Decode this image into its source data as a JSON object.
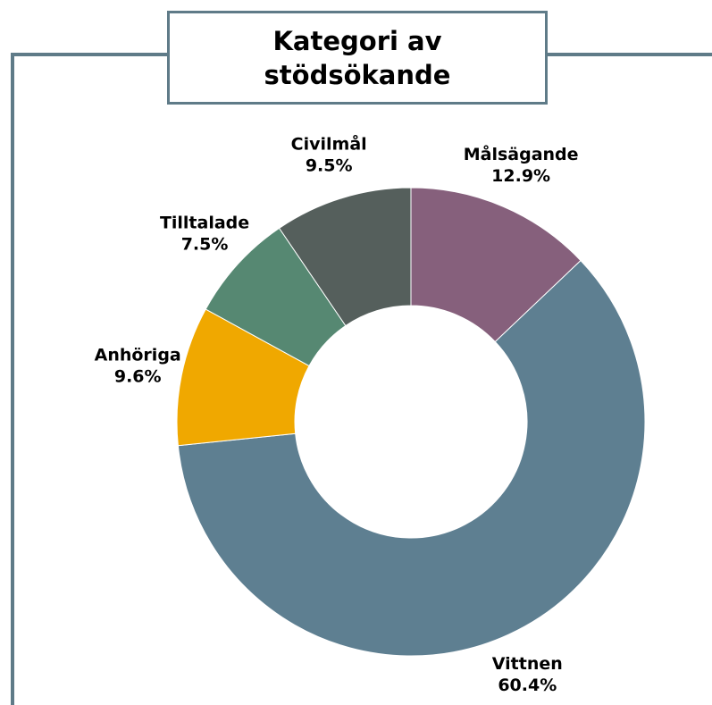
{
  "chart_data": {
    "type": "donut",
    "title": "Kategori av stödsökande",
    "categories": [
      "Målsägande",
      "Vittnen",
      "Anhöriga",
      "Tilltalade",
      "Civilmål"
    ],
    "values": [
      12.9,
      60.4,
      9.6,
      7.5,
      9.5
    ],
    "value_labels": [
      "12.9%",
      "60.4%",
      "9.6%",
      "7.5%",
      "9.5%"
    ],
    "colors": [
      "#86607c",
      "#5e7f91",
      "#f0a800",
      "#568872",
      "#555f5c"
    ]
  }
}
